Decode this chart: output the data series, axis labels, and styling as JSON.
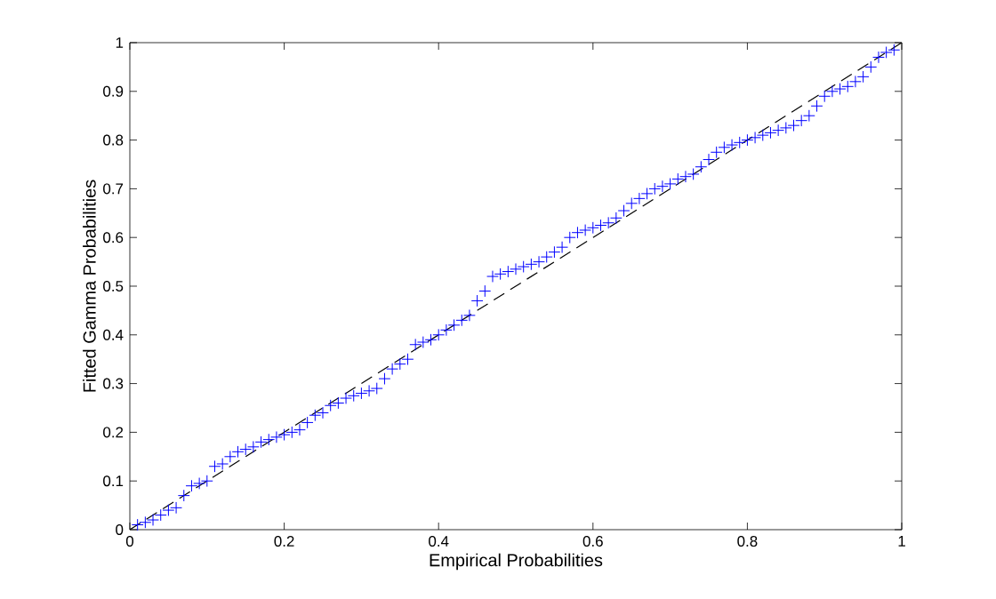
{
  "chart_data": {
    "type": "scatter",
    "xlabel": "Empirical Probabilities",
    "ylabel": "Fitted Gamma Probabilities",
    "xlim": [
      0,
      1
    ],
    "ylim": [
      0,
      1
    ],
    "xticks": [
      0,
      0.2,
      0.4,
      0.6,
      0.8,
      1
    ],
    "yticks": [
      0,
      0.1,
      0.2,
      0.3,
      0.4,
      0.5,
      0.6,
      0.7,
      0.8,
      0.9,
      1
    ],
    "grid": false,
    "series": [
      {
        "color": "#0000ff",
        "marker": "cross",
        "x": [
          0.01,
          0.02,
          0.03,
          0.04,
          0.05,
          0.06,
          0.07,
          0.08,
          0.09,
          0.1,
          0.11,
          0.12,
          0.13,
          0.14,
          0.15,
          0.16,
          0.17,
          0.18,
          0.19,
          0.2,
          0.21,
          0.22,
          0.23,
          0.24,
          0.25,
          0.26,
          0.27,
          0.28,
          0.29,
          0.3,
          0.31,
          0.32,
          0.33,
          0.34,
          0.35,
          0.36,
          0.37,
          0.38,
          0.39,
          0.4,
          0.41,
          0.42,
          0.43,
          0.44,
          0.45,
          0.46,
          0.47,
          0.48,
          0.49,
          0.5,
          0.51,
          0.52,
          0.53,
          0.54,
          0.55,
          0.56,
          0.57,
          0.58,
          0.59,
          0.6,
          0.61,
          0.62,
          0.63,
          0.64,
          0.65,
          0.66,
          0.67,
          0.68,
          0.69,
          0.7,
          0.71,
          0.72,
          0.73,
          0.74,
          0.75,
          0.76,
          0.77,
          0.78,
          0.79,
          0.8,
          0.81,
          0.82,
          0.83,
          0.84,
          0.85,
          0.86,
          0.87,
          0.88,
          0.89,
          0.9,
          0.91,
          0.92,
          0.93,
          0.94,
          0.95,
          0.96,
          0.97,
          0.98,
          0.99
        ],
        "values": [
          0.01,
          0.015,
          0.02,
          0.03,
          0.04,
          0.045,
          0.07,
          0.09,
          0.095,
          0.1,
          0.13,
          0.135,
          0.15,
          0.16,
          0.165,
          0.17,
          0.18,
          0.185,
          0.19,
          0.195,
          0.2,
          0.205,
          0.22,
          0.235,
          0.24,
          0.255,
          0.26,
          0.27,
          0.275,
          0.28,
          0.285,
          0.29,
          0.31,
          0.33,
          0.34,
          0.35,
          0.38,
          0.385,
          0.39,
          0.4,
          0.41,
          0.42,
          0.43,
          0.44,
          0.47,
          0.49,
          0.52,
          0.525,
          0.53,
          0.535,
          0.54,
          0.545,
          0.55,
          0.56,
          0.57,
          0.58,
          0.6,
          0.61,
          0.615,
          0.62,
          0.625,
          0.63,
          0.64,
          0.655,
          0.67,
          0.68,
          0.69,
          0.7,
          0.705,
          0.71,
          0.72,
          0.725,
          0.73,
          0.745,
          0.76,
          0.775,
          0.785,
          0.79,
          0.795,
          0.8,
          0.805,
          0.81,
          0.815,
          0.82,
          0.825,
          0.83,
          0.84,
          0.85,
          0.87,
          0.89,
          0.9,
          0.905,
          0.91,
          0.92,
          0.93,
          0.95,
          0.97,
          0.98,
          0.985
        ]
      },
      {
        "type": "line",
        "color": "#000000",
        "line_style": "dashed",
        "marker": "none",
        "x": [
          0,
          1
        ],
        "values": [
          0,
          1
        ]
      }
    ]
  }
}
